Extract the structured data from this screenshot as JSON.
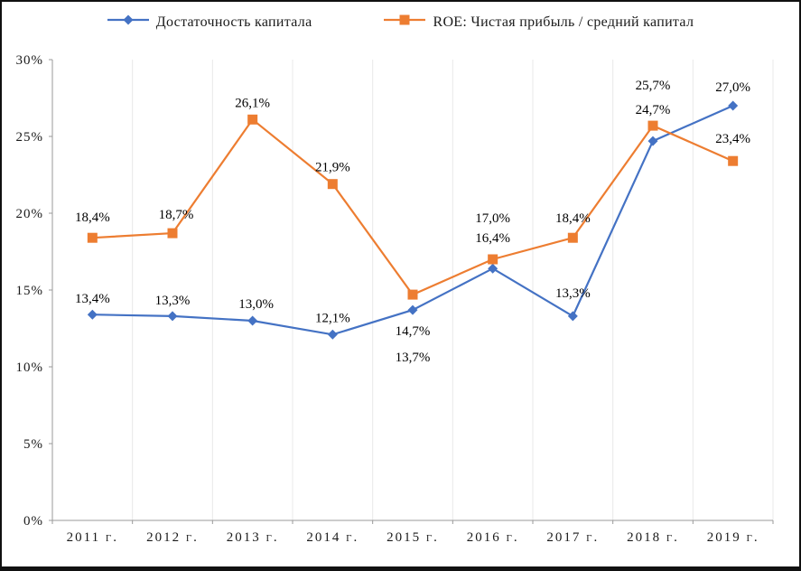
{
  "chart_data": {
    "type": "line",
    "categories": [
      "2011 г.",
      "2012 г.",
      "2013 г.",
      "2014 г.",
      "2015 г.",
      "2016 г.",
      "2017 г.",
      "2018 г.",
      "2019 г."
    ],
    "series": [
      {
        "name": "Достаточность капитала",
        "color": "#4472C4",
        "marker": "diamond",
        "values": [
          13.4,
          13.3,
          13.0,
          12.1,
          13.7,
          16.4,
          13.3,
          24.7,
          27.0
        ],
        "labels": [
          "13,4%",
          "13,3%",
          "13,0%",
          "12,1%",
          "13,7%",
          "16,4%",
          "13,3%",
          "24,7%",
          "27,0%"
        ],
        "label_dx": [
          0,
          0,
          4,
          0,
          0,
          0,
          0,
          0,
          0
        ],
        "label_dy": [
          -13,
          -13,
          -14,
          -14,
          57,
          -29,
          -21,
          -30,
          -16
        ]
      },
      {
        "name": "ROE: Чистая прибыль / средний капитал",
        "color": "#ED7D31",
        "marker": "square",
        "values": [
          18.4,
          18.7,
          26.1,
          21.9,
          14.7,
          17.0,
          18.4,
          25.7,
          23.4
        ],
        "labels": [
          "18,4%",
          "18,7%",
          "26,1%",
          "21,9%",
          "14,7%",
          "17,0%",
          "18,4%",
          "25,7%",
          "23,4%"
        ],
        "label_dx": [
          0,
          4,
          0,
          0,
          0,
          0,
          0,
          0,
          0
        ],
        "label_dy": [
          -18,
          -16,
          -14,
          -14,
          45,
          -41,
          -17,
          -40,
          -20
        ]
      }
    ],
    "ylim": [
      0,
      30
    ],
    "ytick_step": 5,
    "ytick_labels": [
      "0%",
      "5%",
      "10%",
      "15%",
      "20%",
      "25%",
      "30%"
    ],
    "grid": "vertical-light",
    "legend_position": "top",
    "colors": {
      "axis": "#9a9a9a",
      "gridline": "#e8e8e8",
      "frame_border": "#111111",
      "label_text": "#000000"
    }
  }
}
